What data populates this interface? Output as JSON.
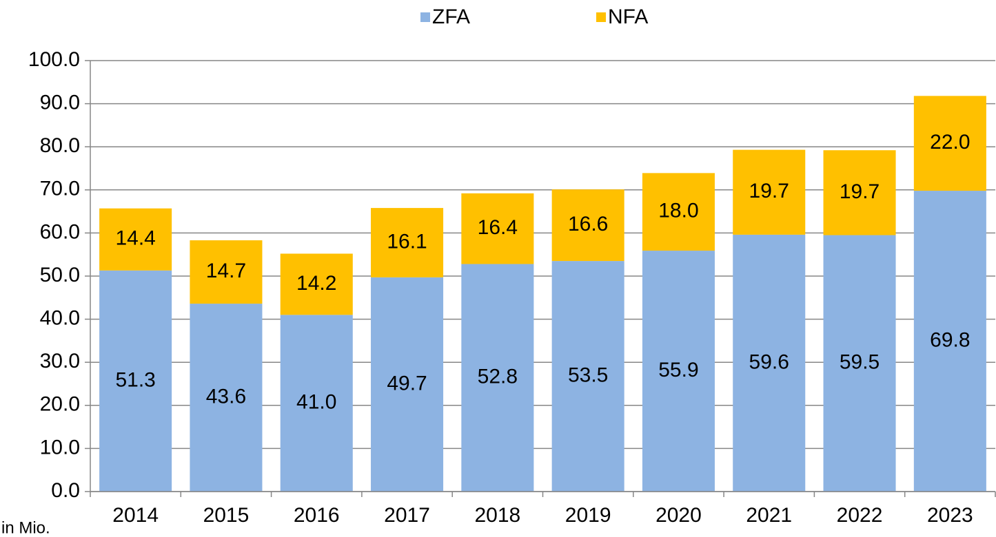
{
  "chart_data": {
    "type": "stacked_bar",
    "categories": [
      "2014",
      "2015",
      "2016",
      "2017",
      "2018",
      "2019",
      "2020",
      "2021",
      "2022",
      "2023"
    ],
    "series": [
      {
        "name": "ZFA",
        "color": "#8db3e2",
        "values": [
          51.3,
          43.6,
          41.0,
          49.7,
          52.8,
          53.5,
          55.9,
          59.6,
          59.5,
          69.8
        ],
        "value_labels": [
          "51.3",
          "43.6",
          "41.0",
          "49.7",
          "52.8",
          "53.5",
          "55.9",
          "59.6",
          "59.5",
          "69.8"
        ]
      },
      {
        "name": "NFA",
        "color": "#ffc000",
        "values": [
          14.4,
          14.7,
          14.2,
          16.1,
          16.4,
          16.6,
          18.0,
          19.7,
          19.7,
          22.0
        ],
        "value_labels": [
          "14.4",
          "14.7",
          "14.2",
          "16.1",
          "16.4",
          "16.6",
          "18.0",
          "19.7",
          "19.7",
          "22.0"
        ]
      }
    ],
    "ylim": [
      0,
      100
    ],
    "yticks": [
      {
        "value": 0,
        "label": "0.0"
      },
      {
        "value": 10,
        "label": "10.0"
      },
      {
        "value": 20,
        "label": "20.0"
      },
      {
        "value": 30,
        "label": "30.0"
      },
      {
        "value": 40,
        "label": "40.0"
      },
      {
        "value": 50,
        "label": "50.0"
      },
      {
        "value": 60,
        "label": "60.0"
      },
      {
        "value": 70,
        "label": "70.0"
      },
      {
        "value": 80,
        "label": "80.0"
      },
      {
        "value": 90,
        "label": "90.0"
      },
      {
        "value": 100,
        "label": "100.0"
      }
    ],
    "y_label": "in Mio.",
    "grid": true,
    "legend": "top"
  }
}
